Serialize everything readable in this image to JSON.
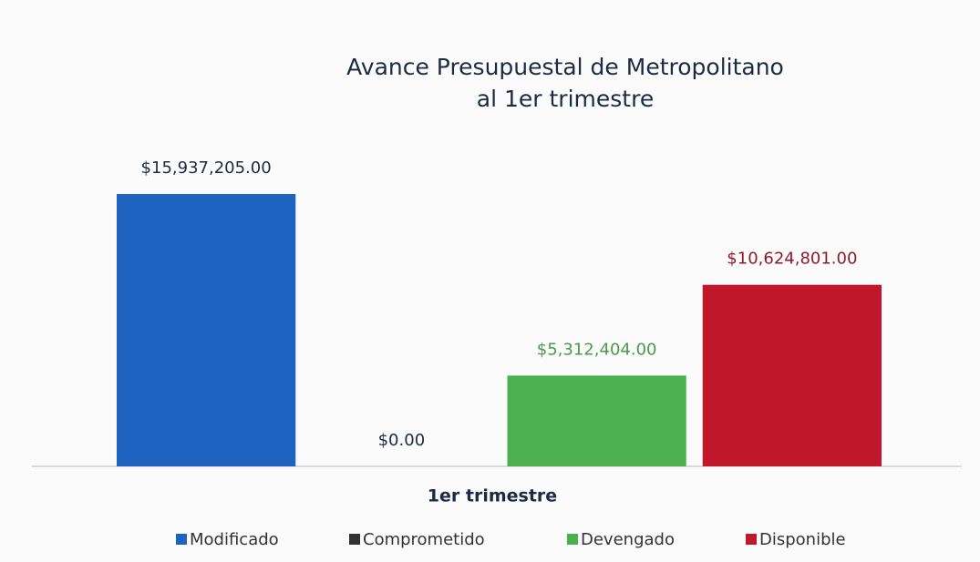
{
  "chart_data": {
    "type": "bar",
    "title": [
      "Avance Presupuestal de Metropolitano",
      "al 1er trimestre"
    ],
    "categories": [
      "1er trimestre"
    ],
    "series": [
      {
        "name": "Modificado",
        "color": "#1f63c0",
        "values": [
          15937205
        ],
        "value_labels": [
          "$15,937,205.00"
        ]
      },
      {
        "name": "Comprometido",
        "color": "#333333",
        "values": [
          0
        ],
        "value_labels": [
          "$0.00"
        ]
      },
      {
        "name": "Devengado",
        "color": "#4caf50",
        "values": [
          5312404
        ],
        "value_labels": [
          "$5,312,404.00"
        ]
      },
      {
        "name": "Disponible",
        "color": "#c0172b",
        "values": [
          10624801
        ],
        "value_labels": [
          "$10,624,801.00"
        ]
      }
    ],
    "legend": "bottom"
  }
}
